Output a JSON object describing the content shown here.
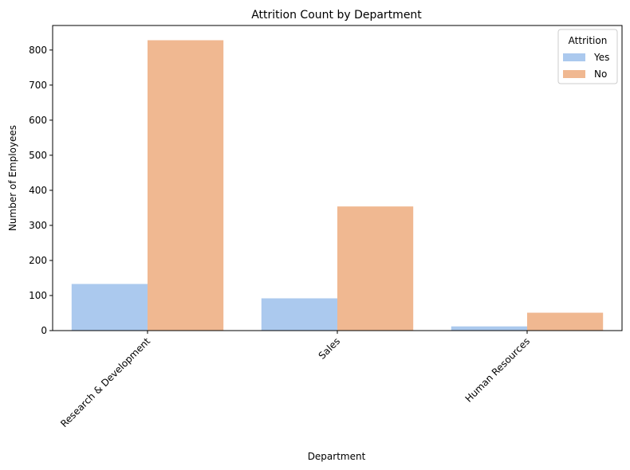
{
  "chart_data": {
    "type": "bar",
    "title": "Attrition Count by Department",
    "xlabel": "Department",
    "ylabel": "Number of Employees",
    "categories": [
      "Research & Development",
      "Sales",
      "Human Resources"
    ],
    "series": [
      {
        "name": "Yes",
        "values": [
          133,
          92,
          12
        ],
        "color": "#abc9ee"
      },
      {
        "name": "No",
        "values": [
          828,
          354,
          51
        ],
        "color": "#f0b891"
      }
    ],
    "ylim": [
      0,
      870
    ],
    "yticks": [
      0,
      100,
      200,
      300,
      400,
      500,
      600,
      700,
      800
    ],
    "legend": {
      "title": "Attrition",
      "placement": "top-right"
    },
    "grid": false
  }
}
